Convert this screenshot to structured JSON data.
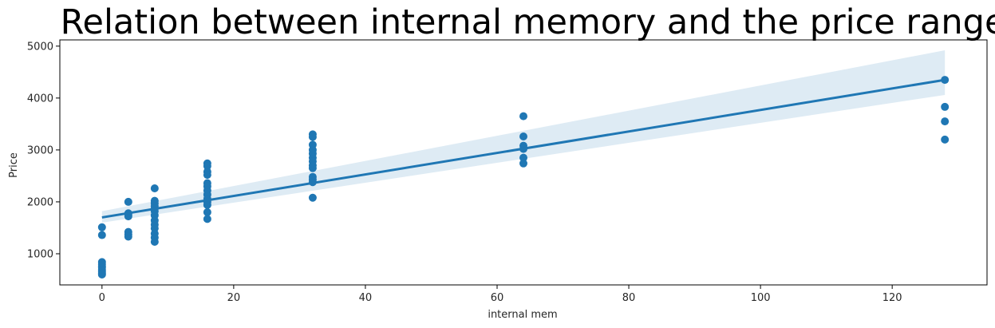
{
  "chart_data": {
    "type": "scatter",
    "title": "Relation between internal memory and the price range",
    "xlabel": "internal mem",
    "ylabel": "Price",
    "xlim": [
      -6.4,
      134.4
    ],
    "ylim": [
      400,
      5120
    ],
    "xticks": [
      0,
      20,
      40,
      60,
      80,
      100,
      120
    ],
    "yticks": [
      1000,
      2000,
      3000,
      4000,
      5000
    ],
    "grid": false,
    "points": [
      {
        "x": 0,
        "y": 1510
      },
      {
        "x": 0,
        "y": 1360
      },
      {
        "x": 0,
        "y": 840
      },
      {
        "x": 0,
        "y": 800
      },
      {
        "x": 0,
        "y": 760
      },
      {
        "x": 0,
        "y": 730
      },
      {
        "x": 0,
        "y": 690
      },
      {
        "x": 0,
        "y": 650
      },
      {
        "x": 0,
        "y": 620
      },
      {
        "x": 0,
        "y": 600
      },
      {
        "x": 4,
        "y": 2000
      },
      {
        "x": 4,
        "y": 1780
      },
      {
        "x": 4,
        "y": 1750
      },
      {
        "x": 4,
        "y": 1720
      },
      {
        "x": 4,
        "y": 1420
      },
      {
        "x": 4,
        "y": 1370
      },
      {
        "x": 4,
        "y": 1330
      },
      {
        "x": 8,
        "y": 2260
      },
      {
        "x": 8,
        "y": 2020
      },
      {
        "x": 8,
        "y": 1970
      },
      {
        "x": 8,
        "y": 1920
      },
      {
        "x": 8,
        "y": 1870
      },
      {
        "x": 8,
        "y": 1820
      },
      {
        "x": 8,
        "y": 1740
      },
      {
        "x": 8,
        "y": 1640
      },
      {
        "x": 8,
        "y": 1560
      },
      {
        "x": 8,
        "y": 1490
      },
      {
        "x": 8,
        "y": 1390
      },
      {
        "x": 8,
        "y": 1310
      },
      {
        "x": 8,
        "y": 1230
      },
      {
        "x": 16,
        "y": 2740
      },
      {
        "x": 16,
        "y": 2690
      },
      {
        "x": 16,
        "y": 2580
      },
      {
        "x": 16,
        "y": 2520
      },
      {
        "x": 16,
        "y": 2360
      },
      {
        "x": 16,
        "y": 2300
      },
      {
        "x": 16,
        "y": 2220
      },
      {
        "x": 16,
        "y": 2140
      },
      {
        "x": 16,
        "y": 2060
      },
      {
        "x": 16,
        "y": 2000
      },
      {
        "x": 16,
        "y": 1940
      },
      {
        "x": 16,
        "y": 1800
      },
      {
        "x": 16,
        "y": 1670
      },
      {
        "x": 32,
        "y": 3300
      },
      {
        "x": 32,
        "y": 3250
      },
      {
        "x": 32,
        "y": 3100
      },
      {
        "x": 32,
        "y": 3000
      },
      {
        "x": 32,
        "y": 2930
      },
      {
        "x": 32,
        "y": 2850
      },
      {
        "x": 32,
        "y": 2780
      },
      {
        "x": 32,
        "y": 2700
      },
      {
        "x": 32,
        "y": 2650
      },
      {
        "x": 32,
        "y": 2480
      },
      {
        "x": 32,
        "y": 2430
      },
      {
        "x": 32,
        "y": 2380
      },
      {
        "x": 32,
        "y": 2080
      },
      {
        "x": 64,
        "y": 3650
      },
      {
        "x": 64,
        "y": 3260
      },
      {
        "x": 64,
        "y": 3080
      },
      {
        "x": 64,
        "y": 3020
      },
      {
        "x": 64,
        "y": 2850
      },
      {
        "x": 64,
        "y": 2740
      },
      {
        "x": 128,
        "y": 4350
      },
      {
        "x": 128,
        "y": 3830
      },
      {
        "x": 128,
        "y": 3550
      },
      {
        "x": 128,
        "y": 3200
      }
    ],
    "regression": {
      "x": [
        0,
        128
      ],
      "y": [
        1700,
        4350
      ],
      "ci_upper": [
        1820,
        4920
      ],
      "ci_lower": [
        1600,
        4060
      ]
    },
    "colors": {
      "points": "#1f77b4",
      "line": "#1f77b4",
      "band": "#1f77b4"
    }
  }
}
